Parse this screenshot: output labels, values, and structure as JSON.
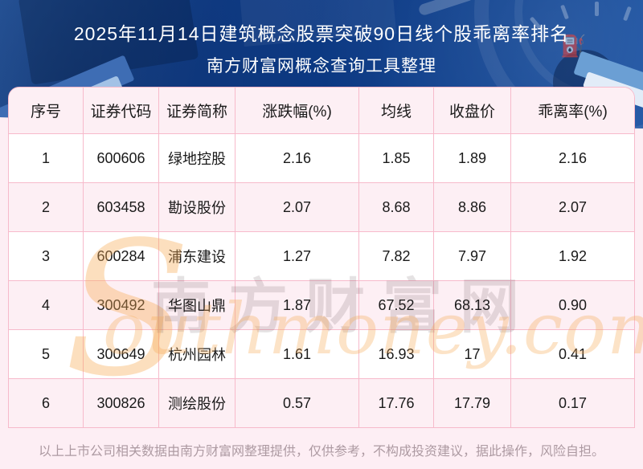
{
  "title": {
    "line1": "2025年11月14日建筑概念股票突破90日线个股乖离率排名",
    "line2": "南方财富网概念查询工具整理"
  },
  "chart_data": {
    "type": "table",
    "title": "2025年11月14日建筑概念股票突破90日线个股乖离率排名",
    "subtitle": "南方财富网概念查询工具整理",
    "columns": [
      "序号",
      "证券代码",
      "证券简称",
      "涨跌幅(%)",
      "均线",
      "收盘价",
      "乖离率(%)"
    ],
    "rows": [
      [
        "1",
        "600606",
        "绿地控股",
        "2.16",
        "1.85",
        "1.89",
        "2.16"
      ],
      [
        "2",
        "603458",
        "勘设股份",
        "2.07",
        "8.68",
        "8.86",
        "2.07"
      ],
      [
        "3",
        "600284",
        "浦东建设",
        "1.27",
        "7.82",
        "7.97",
        "1.92"
      ],
      [
        "4",
        "300492",
        "华图山鼎",
        "1.87",
        "67.52",
        "68.13",
        "0.90"
      ],
      [
        "5",
        "300649",
        "杭州园林",
        "1.61",
        "16.93",
        "17",
        "0.41"
      ],
      [
        "6",
        "300826",
        "测绘股份",
        "0.57",
        "17.76",
        "17.79",
        "0.17"
      ]
    ]
  },
  "watermark": {
    "initial": "S",
    "cn": "南方财富网",
    "en": "outhmoney.com"
  },
  "footer": {
    "disclaimer": "以上上市公司相关数据由南方财富网整理提供，仅供参考，不构成投资建议，据此操作，风险自担。"
  },
  "icons": {
    "fuel_pump": "⛽"
  },
  "colors": {
    "header_blue": "#0b3a86",
    "row_pink": "#fdeff4",
    "row_white": "#ffffff",
    "border_pink": "#f7bacb",
    "page_pink": "#fdeef4",
    "watermark_orange": "#f6aa55",
    "title_text": "#ffffff",
    "footer_text": "#ad9aa2"
  }
}
